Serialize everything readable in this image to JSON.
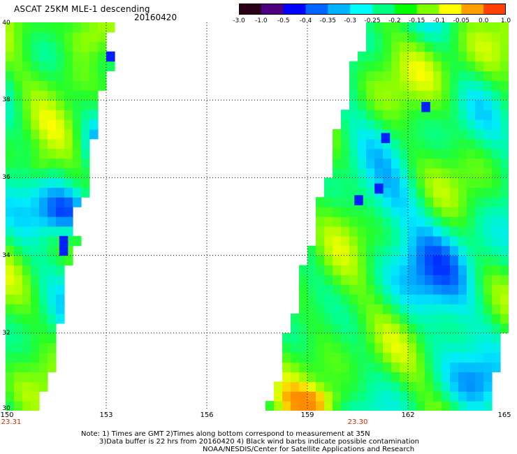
{
  "header": {
    "title": "ASCAT 25KM MLE-1 descending",
    "date": "20160420"
  },
  "colorbar": {
    "labels": [
      "-3.0",
      "-1.0",
      "-0.5",
      "-0.4",
      "-0.35",
      "-0.3",
      "-0.25",
      "-0.2",
      "-0.15",
      "-0.1",
      "-0.05",
      "0.0",
      "1.0"
    ],
    "colors": [
      "#2a0018",
      "#4b0080",
      "#0000ff",
      "#0064ff",
      "#00b4ff",
      "#00ffff",
      "#00ff80",
      "#00ff00",
      "#80ff00",
      "#ffff00",
      "#ffa000",
      "#ff4000"
    ]
  },
  "map": {
    "lon_range": [
      150,
      165
    ],
    "lat_range": [
      30,
      40
    ],
    "lat_ticks": [
      "40",
      "38",
      "36",
      "34",
      "32",
      "30"
    ],
    "lon_ticks": [
      "150",
      "153",
      "156",
      "159",
      "162",
      "165"
    ],
    "swath_times": [
      {
        "lon": 150,
        "label": "23.31"
      },
      {
        "lon": 160.5,
        "label": "23.30"
      }
    ]
  },
  "notes": [
    "Note: 1) Times are GMT 2)Times along bottom correspond to measurement at 35N",
    "3)Data buffer is 22 hrs from 20160420 4) Black wind barbs indicate possible contamination",
    "NOAA/NESDIS/Center for Satellite Applications and Research"
  ]
}
